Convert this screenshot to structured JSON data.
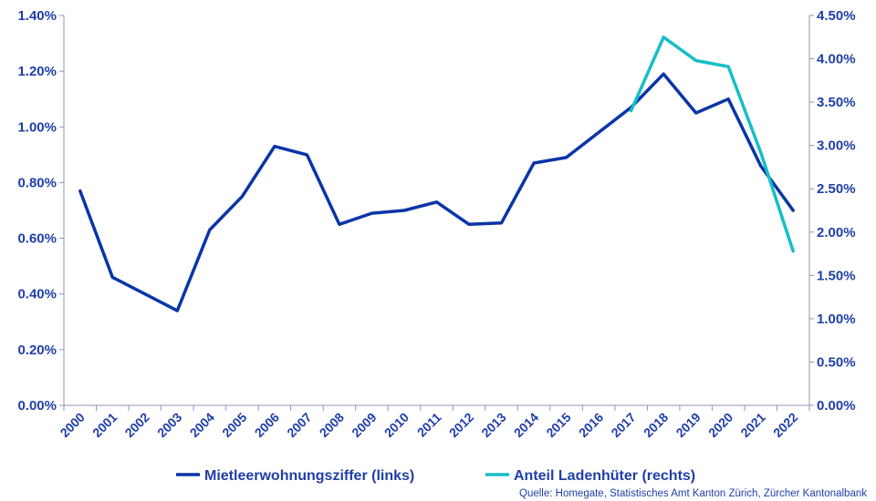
{
  "chart_data": {
    "type": "line",
    "categories": [
      "2000",
      "2001",
      "2002",
      "2003",
      "2004",
      "2005",
      "2006",
      "2007",
      "2008",
      "2009",
      "2010",
      "2011",
      "2012",
      "2013",
      "2014",
      "2015",
      "2016",
      "2017",
      "2018",
      "2019",
      "2020",
      "2021",
      "2022"
    ],
    "series": [
      {
        "name": "Mietleerwohnungsziffer (links)",
        "axis": "left",
        "color": "#0a35a8",
        "values": [
          0.77,
          0.46,
          0.4,
          0.34,
          0.63,
          0.75,
          0.93,
          0.9,
          0.65,
          0.69,
          0.7,
          0.73,
          0.65,
          0.655,
          0.87,
          0.89,
          0.98,
          1.07,
          1.19,
          1.05,
          1.1,
          0.86,
          0.7
        ]
      },
      {
        "name": "Anteil Ladenhüter (rechts)",
        "axis": "right",
        "color": "#17bec6",
        "values": [
          null,
          null,
          null,
          null,
          null,
          null,
          null,
          null,
          null,
          null,
          null,
          null,
          null,
          null,
          null,
          null,
          null,
          3.4,
          4.25,
          3.98,
          3.91,
          2.92,
          1.78
        ]
      }
    ],
    "y_left": {
      "min": 0,
      "max": 1.4,
      "tick_values": [
        0,
        0.2,
        0.4,
        0.6,
        0.8,
        1.0,
        1.2,
        1.4
      ],
      "tick_labels": [
        "0.00%",
        "0.20%",
        "0.40%",
        "0.60%",
        "0.80%",
        "1.00%",
        "1.20%",
        "1.40%"
      ]
    },
    "y_right": {
      "min": 0,
      "max": 4.5,
      "tick_values": [
        0,
        0.5,
        1.0,
        1.5,
        2.0,
        2.5,
        3.0,
        3.5,
        4.0,
        4.5
      ],
      "tick_labels": [
        "0.00%",
        "0.50%",
        "1.00%",
        "1.50%",
        "2.00%",
        "2.50%",
        "3.00%",
        "3.50%",
        "4.00%",
        "4.50%"
      ]
    },
    "grid": false,
    "legend_position": "bottom",
    "source": "Quelle: Homegate, Statistisches Amt Kanton Zürich, Zürcher Kantonalbank"
  },
  "colors": {
    "text": "#1f3fa8",
    "axis": "#8c96b4"
  }
}
